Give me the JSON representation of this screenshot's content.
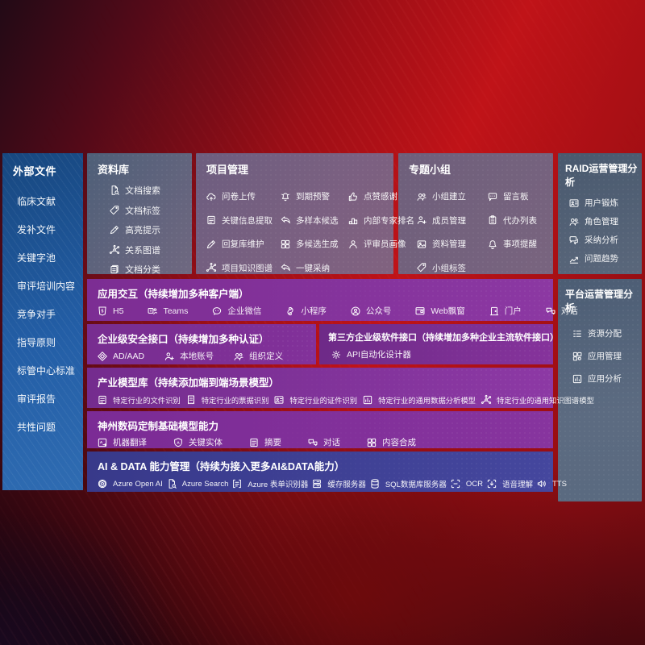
{
  "palette": {
    "background_red": "#b31117",
    "background_dark": "#23060f",
    "sidebar_blue": "#235ea6",
    "panel_slate": "#566478",
    "panel_mauve": "#75607e",
    "module_purple": "#822f99",
    "ai_indigo": "#3e3f93",
    "text": "#ffffff"
  },
  "sidebar": {
    "title": "外部文件",
    "items": [
      "临床文献",
      "发补文件",
      "关键字池",
      "审评培训内容",
      "竞争对手",
      "指导原则",
      "标管中心标准",
      "审评报告",
      "共性问题"
    ]
  },
  "top_panels": [
    {
      "title": "资料库",
      "items": [
        {
          "icon": "doc-search-icon",
          "label": "文档搜索"
        },
        {
          "icon": "doc-tag-icon",
          "label": "文档标签"
        },
        {
          "icon": "highlight-icon",
          "label": "高亮提示"
        },
        {
          "icon": "relation-graph-icon",
          "label": "关系图谱"
        },
        {
          "icon": "doc-classify-icon",
          "label": "文档分类"
        }
      ]
    },
    {
      "title": "项目管理",
      "items": [
        {
          "icon": "upload-icon",
          "label": "问卷上传"
        },
        {
          "icon": "alarm-icon",
          "label": "到期预警"
        },
        {
          "icon": "thumbs-up-icon",
          "label": "点赞感谢"
        },
        {
          "icon": "info-extract-icon",
          "label": "关键信息提取"
        },
        {
          "icon": "multi-sample-icon",
          "label": "多样本候选"
        },
        {
          "icon": "expert-ranking-icon",
          "label": "内部专家排名"
        },
        {
          "icon": "reply-maintain-icon",
          "label": "回复库维护"
        },
        {
          "icon": "multi-candidate-icon",
          "label": "多候选生成"
        },
        {
          "icon": "reviewer-portrait-icon",
          "label": "评审员画像"
        },
        {
          "icon": "project-knowledge-graph-icon",
          "label": "项目知识图谱"
        },
        {
          "icon": "one-click-adopt-icon",
          "label": "一键采纳"
        }
      ]
    },
    {
      "title": "专题小组",
      "items": [
        {
          "icon": "group-create-icon",
          "label": "小组建立"
        },
        {
          "icon": "bbs-icon",
          "label": "留言板"
        },
        {
          "icon": "member-manage-icon",
          "label": "成员管理"
        },
        {
          "icon": "todo-list-icon",
          "label": "代办列表"
        },
        {
          "icon": "material-manage-icon",
          "label": "资料管理"
        },
        {
          "icon": "reminder-icon",
          "label": "事项提醒"
        },
        {
          "icon": "group-tag-icon",
          "label": "小组标签"
        }
      ]
    }
  ],
  "right_panels": [
    {
      "title": "RAID运营管理分析",
      "items": [
        {
          "icon": "user-card-icon",
          "label": "用户锻炼"
        },
        {
          "icon": "role-manage-icon",
          "label": "角色管理"
        },
        {
          "icon": "adoption-analysis-icon",
          "label": "采纳分析"
        },
        {
          "icon": "issue-trend-icon",
          "label": "问题趋势"
        }
      ]
    },
    {
      "title": "平台运营管理分析",
      "items": [
        {
          "icon": "resource-allocation-icon",
          "label": "资源分配"
        },
        {
          "icon": "app-manage-icon",
          "label": "应用管理"
        },
        {
          "icon": "app-analysis-icon",
          "label": "应用分析"
        }
      ]
    }
  ],
  "middle_rows": [
    {
      "title": "应用交互（持续增加多种客户端）",
      "items": [
        {
          "icon": "h5-icon",
          "label": "H5"
        },
        {
          "icon": "teams-icon",
          "label": "Teams"
        },
        {
          "icon": "wecom-icon",
          "label": "企业微信"
        },
        {
          "icon": "miniprogram-icon",
          "label": "小程序"
        },
        {
          "icon": "official-account-icon",
          "label": "公众号"
        },
        {
          "icon": "web-popup-icon",
          "label": "Web飘窗"
        },
        {
          "icon": "portal-icon",
          "label": "门户"
        },
        {
          "icon": "dialog-icon",
          "label": "对话"
        }
      ]
    },
    {
      "panels": [
        {
          "title": "企业级安全接口（持续增加多种认证）",
          "items": [
            {
              "icon": "ad-aad-icon",
              "label": "AD/AAD"
            },
            {
              "icon": "local-account-icon",
              "label": "本地账号"
            },
            {
              "icon": "org-define-icon",
              "label": "组织定义"
            }
          ]
        },
        {
          "title": "第三方企业级软件接口（持续增加多种企业主流软件接口）",
          "items": [
            {
              "icon": "api-designer-icon",
              "label": "API自动化设计器"
            }
          ]
        }
      ]
    },
    {
      "title": "产业模型库（持续添加端到端场景模型）",
      "items": [
        {
          "icon": "file-recognition-icon",
          "label": "特定行业的文件识别"
        },
        {
          "icon": "receipt-recognition-icon",
          "label": "特定行业的票据识别"
        },
        {
          "icon": "idcard-recognition-icon",
          "label": "特定行业的证件识别"
        },
        {
          "icon": "data-analysis-model-icon",
          "label": "特定行业的通用数据分析模型"
        },
        {
          "icon": "knowledge-graph-model-icon",
          "label": "特定行业的通用知识图谱模型"
        }
      ]
    },
    {
      "title": "神州数码定制基础模型能力",
      "items": [
        {
          "icon": "translation-icon",
          "label": "机器翻译"
        },
        {
          "icon": "key-entity-icon",
          "label": "关键实体"
        },
        {
          "icon": "summary-icon",
          "label": "摘要"
        },
        {
          "icon": "dialog-icon",
          "label": "对话"
        },
        {
          "icon": "content-compose-icon",
          "label": "内容合成"
        }
      ]
    },
    {
      "title": "AI & DATA 能力管理（持续为接入更多AI&DATA能力）",
      "items": [
        {
          "icon": "openai-icon",
          "label": "Azure Open AI"
        },
        {
          "icon": "azure-search-icon",
          "label": "Azure Search"
        },
        {
          "icon": "form-recognizer-icon",
          "label": "Azure 表单识别器"
        },
        {
          "icon": "cache-server-icon",
          "label": "缓存服务器"
        },
        {
          "icon": "sql-server-icon",
          "label": "SQL数据库服务器"
        },
        {
          "icon": "ocr-icon",
          "label": "OCR"
        },
        {
          "icon": "speech-understanding-icon",
          "label": "语音理解"
        },
        {
          "icon": "tts-icon",
          "label": "TTS"
        }
      ]
    }
  ]
}
